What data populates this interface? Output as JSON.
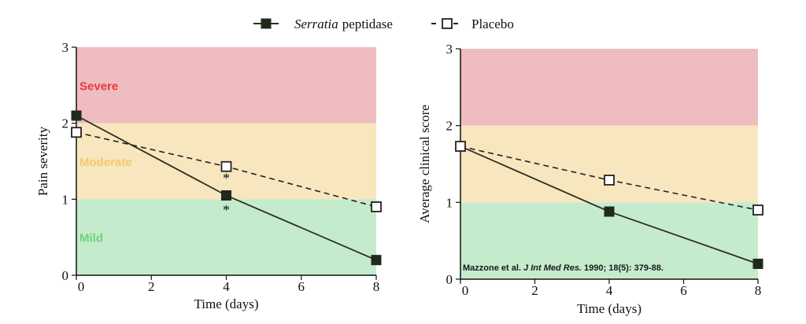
{
  "legend": {
    "series_a_italic": "Serratia",
    "series_a_rest": "peptidase",
    "series_b": "Placebo"
  },
  "colors": {
    "severe": "#efbcbf",
    "moderate": "#f8e6bf",
    "mild": "#c5ebcd",
    "severe_text": "#e8383c",
    "moderate_text": "#f5c96a",
    "mild_text": "#6fd17f",
    "serratia_fill": "#1f2b1a",
    "serratia_line": "#2a2f1e",
    "placebo_stroke": "#222222"
  },
  "chart_data": [
    {
      "type": "line",
      "xlabel": "Time (days)",
      "ylabel": "Pain severity",
      "xlim": [
        0,
        8
      ],
      "ylim": [
        0,
        3
      ],
      "xticks": [
        0,
        2,
        4,
        6,
        8
      ],
      "yticks": [
        0,
        1,
        2,
        3
      ],
      "bands": [
        {
          "label": "Severe",
          "from": 2,
          "to": 3
        },
        {
          "label": "Moderate",
          "from": 1,
          "to": 2
        },
        {
          "label": "Mild",
          "from": 0,
          "to": 1
        }
      ],
      "series": [
        {
          "name": "Serratia peptidase",
          "x": [
            0,
            4,
            8
          ],
          "y": [
            2.1,
            1.05,
            0.2
          ]
        },
        {
          "name": "Placebo",
          "x": [
            0,
            4,
            8
          ],
          "y": [
            1.88,
            1.43,
            0.9
          ]
        }
      ],
      "annotations": [
        {
          "text": "*",
          "x": 4,
          "y": 1.3
        },
        {
          "text": "*",
          "x": 4,
          "y": 0.88
        }
      ],
      "note": ""
    },
    {
      "type": "line",
      "xlabel": "Time (days)",
      "ylabel": "Average clinical score",
      "xlim": [
        0,
        8
      ],
      "ylim": [
        0,
        3
      ],
      "xticks": [
        0,
        2,
        4,
        6,
        8
      ],
      "yticks": [
        0,
        1,
        2,
        3
      ],
      "bands": [
        {
          "label": "",
          "from": 2,
          "to": 3
        },
        {
          "label": "",
          "from": 1,
          "to": 2
        },
        {
          "label": "",
          "from": 0,
          "to": 1
        }
      ],
      "series": [
        {
          "name": "Serratia peptidase",
          "x": [
            0,
            4,
            8
          ],
          "y": [
            1.73,
            0.88,
            0.2
          ]
        },
        {
          "name": "Placebo",
          "x": [
            0,
            4,
            8
          ],
          "y": [
            1.73,
            1.29,
            0.9
          ]
        }
      ],
      "annotations": [],
      "note": {
        "pre": "Mazzone et al. ",
        "italic": "J Int Med Res.",
        "post": " 1990; 18(5): 379-88."
      }
    }
  ]
}
